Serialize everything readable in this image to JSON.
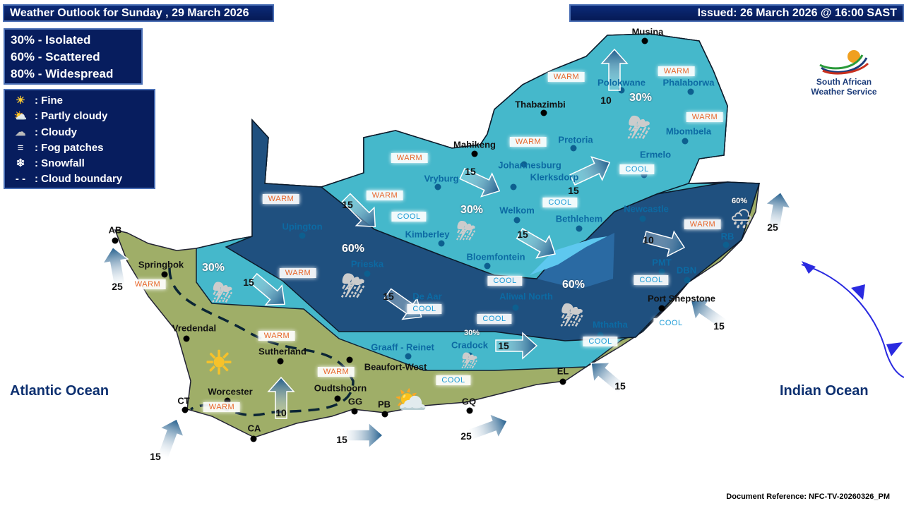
{
  "header": {
    "title": "Weather Outlook for Sunday , 29 March 2026",
    "issued": "Issued: 26 March 2026 @ 16:00 SAST"
  },
  "probability_legend": [
    "30% - Isolated",
    "60% - Scattered",
    "80% - Widespread"
  ],
  "symbol_legend": [
    {
      "icon": "sun-icon",
      "label": ": Fine"
    },
    {
      "icon": "partly-cloudy-icon",
      "label": ": Partly cloudy"
    },
    {
      "icon": "cloud-icon",
      "label": ": Cloudy"
    },
    {
      "icon": "fog-icon",
      "label": ": Fog patches"
    },
    {
      "icon": "snowflake-icon",
      "label": ": Snowfall"
    },
    {
      "icon": "dashed-line-icon",
      "label": ": Cloud boundary"
    }
  ],
  "logo": {
    "line1": "South African",
    "line2": "Weather Service"
  },
  "oceans": [
    "Atlantic Ocean",
    "Indian Ocean"
  ],
  "cities": [
    "Musina",
    "Polokwane",
    "Phalaborwa",
    "Thabazimbi",
    "Mbombela",
    "Mahikeng",
    "Pretoria",
    "Johannesburg",
    "Klerksdorp",
    "Ermelo",
    "Vryburg",
    "Welkom",
    "Bethlehem",
    "Newcastle",
    "Kimberley",
    "Bloemfontein",
    "Upington",
    "Prieska",
    "De Aar",
    "Aliwal North",
    "Mthatha",
    "Port Shepstone",
    "DBN",
    "PMT",
    "RB",
    "Graaff - Reinet",
    "Cradock",
    "Beaufort-West",
    "Sutherland",
    "Vredendal",
    "Springbok",
    "AB",
    "Worcester",
    "CT",
    "CA",
    "Oudtshoorn",
    "GG",
    "PB",
    "GQ",
    "EL"
  ],
  "temperature_tags": [
    "WARM",
    "WARM",
    "WARM",
    "WARM",
    "WARM",
    "COOL",
    "COOL",
    "COOL",
    "COOL",
    "WARM",
    "WARM",
    "COOL",
    "COOL",
    "COOL",
    "WARM",
    "COOL",
    "WARM",
    "WARM",
    "WARM",
    "WARM",
    "COOL",
    "COOL",
    "WARM"
  ],
  "rain_probabilities": [
    "30%",
    "30%",
    "60%",
    "60%",
    "30%",
    "30%",
    "60%"
  ],
  "wind_speeds": [
    "10",
    "15",
    "15",
    "15",
    "15",
    "15",
    "15",
    "10",
    "15",
    "25",
    "15",
    "15",
    "25",
    "15",
    "15",
    "10",
    "25"
  ],
  "weather_icons": [
    "thunderstorm-icon",
    "thunderstorm-icon",
    "thunderstorm-icon",
    "thunderstorm-icon",
    "thunderstorm-icon",
    "thunderstorm-icon",
    "rain-cloud-icon",
    "sun-icon",
    "partly-cloudy-icon"
  ],
  "colors": {
    "warm": "#e8662a",
    "cool": "#1a9ad6",
    "land": "#9fae68",
    "light_region": "#45b8cb",
    "dark_region": "#1f507f",
    "front": "#2a2ae0",
    "header_bg": "#071d5e"
  },
  "footer": {
    "reference": "Document Reference: NFC-TV-20260326_PM"
  }
}
